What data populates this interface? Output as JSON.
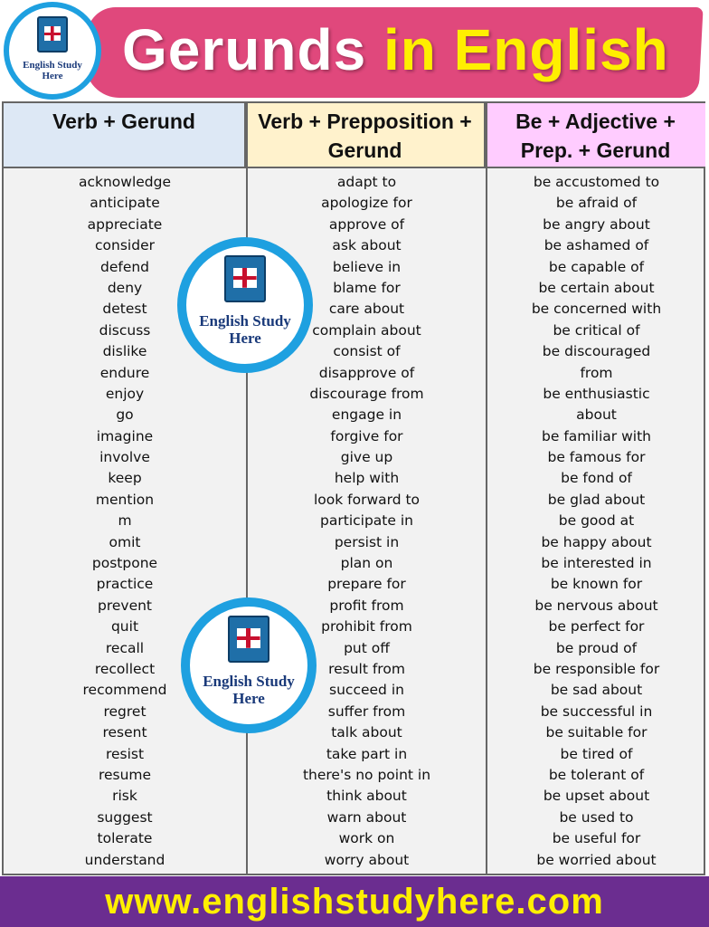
{
  "header": {
    "title_main": "Gerunds",
    "title_highlight": "in English",
    "logo_text": "English Study Here"
  },
  "columns": [
    {
      "heading": "Verb + Gerund",
      "color": "#dde8f5",
      "items": [
        "acknowledge",
        "anticipate",
        "appreciate",
        "consider",
        "defend",
        "deny",
        "detest",
        "discuss",
        "dislike",
        "endure",
        "enjoy",
        "go",
        "imagine",
        "involve",
        "keep",
        "mention",
        "m",
        "omit",
        "postpone",
        "practice",
        "prevent",
        "quit",
        "recall",
        "recollect",
        "recommend",
        "regret",
        "resent",
        "resist",
        "resume",
        "risk",
        "suggest",
        "tolerate",
        "understand"
      ]
    },
    {
      "heading": "Verb + Prepposition + Gerund",
      "color": "#fff2cc",
      "items": [
        "adapt to",
        "apologize for",
        "approve of",
        "ask about",
        "believe in",
        "blame for",
        "care about",
        "complain about",
        "consist of",
        "disapprove of",
        "discourage from",
        "engage in",
        "forgive for",
        "give up",
        "help with",
        "look forward to",
        "participate in",
        "persist in",
        "plan on",
        "prepare for",
        "profit from",
        "prohibit from",
        "put off",
        "result from",
        "succeed in",
        "suffer from",
        "talk about",
        "take part in",
        "there's no point in",
        "think about",
        "warn about",
        "work on",
        "worry about"
      ]
    },
    {
      "heading": "Be + Adjective + Prep. + Gerund",
      "color": "#ffccff",
      "items": [
        "be accustomed to",
        "be afraid of",
        "be angry about",
        "be ashamed of",
        "be capable of",
        "be certain about",
        "be concerned with",
        "be critical of",
        "be discouraged",
        "from",
        "be enthusiastic",
        "about",
        "be familiar with",
        "be famous for",
        "be fond of",
        "be glad about",
        "be good at",
        "be happy about",
        "be interested in",
        "be known for",
        "be nervous about",
        "be perfect for",
        "be proud of",
        "be responsible for",
        "be sad about",
        "be successful in",
        "be suitable for",
        "be tired of",
        "be tolerant of",
        "be upset about",
        "be used to",
        "be useful for",
        "be worried about"
      ]
    }
  ],
  "footer": {
    "url": "www.englishstudyhere.com"
  },
  "colors": {
    "banner": "#e0487c",
    "accent_yellow": "#ffef00",
    "footer": "#6b2d90",
    "logo_ring": "#1ea0e0"
  }
}
